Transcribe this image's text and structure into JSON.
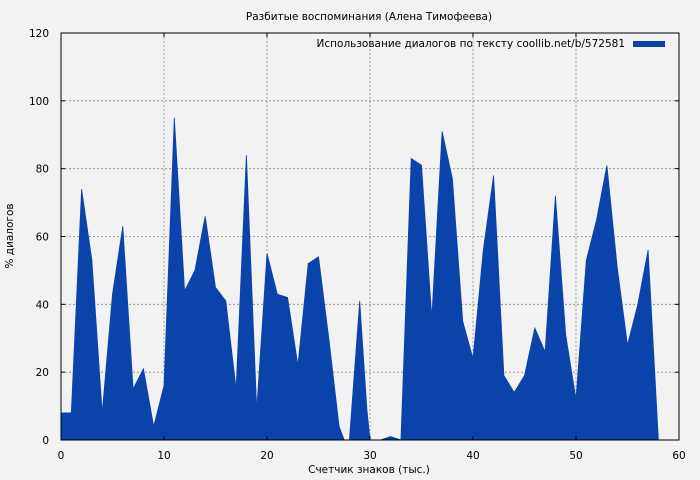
{
  "chart_data": {
    "type": "area",
    "title": "Разбитые воспоминания (Алена Тимофеева)",
    "xlabel": "Счетчик знаков (тыс.)",
    "ylabel": "% диалогов",
    "xlim": [
      0,
      60
    ],
    "ylim": [
      0,
      120
    ],
    "x_ticks": [
      "0",
      "10",
      "20",
      "30",
      "40",
      "50",
      "60"
    ],
    "y_ticks": [
      "0",
      "20",
      "40",
      "60",
      "80",
      "100",
      "120"
    ],
    "grid": true,
    "legend_position": "top-right",
    "series": [
      {
        "name": "Использование диалогов по тексту coollib.net/b/572581",
        "color": "#0a43aa",
        "points": [
          [
            0,
            8
          ],
          [
            1,
            8
          ],
          [
            2,
            74
          ],
          [
            3,
            53
          ],
          [
            4,
            8
          ],
          [
            5,
            43
          ],
          [
            6,
            63
          ],
          [
            7,
            15
          ],
          [
            8,
            21
          ],
          [
            9,
            4
          ],
          [
            10,
            16
          ],
          [
            11,
            95
          ],
          [
            12,
            44
          ],
          [
            13,
            50
          ],
          [
            14,
            66
          ],
          [
            15,
            45
          ],
          [
            16,
            41
          ],
          [
            17,
            15
          ],
          [
            18,
            84
          ],
          [
            19,
            9
          ],
          [
            20,
            55
          ],
          [
            21,
            43
          ],
          [
            22,
            42
          ],
          [
            23,
            22
          ],
          [
            24,
            52
          ],
          [
            25,
            54
          ],
          [
            26,
            30
          ],
          [
            27,
            4
          ],
          [
            27.5,
            0
          ],
          [
            28,
            0
          ],
          [
            29,
            41
          ],
          [
            29.7,
            9
          ],
          [
            30,
            0
          ],
          [
            31,
            0
          ],
          [
            32,
            1
          ],
          [
            33,
            0
          ],
          [
            34,
            83
          ],
          [
            35,
            81
          ],
          [
            36,
            36
          ],
          [
            37,
            91
          ],
          [
            38,
            77
          ],
          [
            39,
            35
          ],
          [
            40,
            24
          ],
          [
            41,
            56
          ],
          [
            42,
            78
          ],
          [
            43,
            19
          ],
          [
            44,
            14
          ],
          [
            45,
            19
          ],
          [
            46,
            33
          ],
          [
            47,
            26
          ],
          [
            48,
            72
          ],
          [
            49,
            31
          ],
          [
            50,
            12
          ],
          [
            51,
            53
          ],
          [
            52,
            65
          ],
          [
            53,
            81
          ],
          [
            54,
            51
          ],
          [
            55,
            28
          ],
          [
            56,
            40
          ],
          [
            57,
            56
          ],
          [
            58,
            0
          ]
        ]
      }
    ]
  }
}
